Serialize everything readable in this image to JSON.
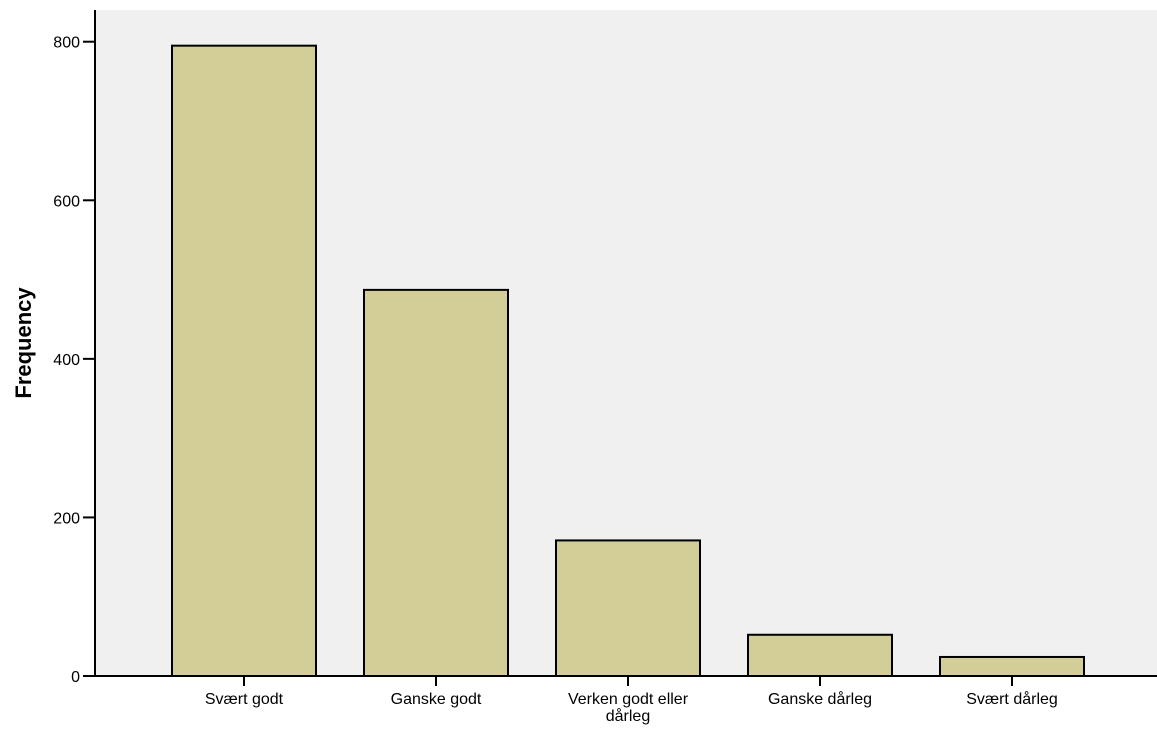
{
  "chart_data": {
    "type": "bar",
    "title": "",
    "xlabel": "",
    "ylabel": "Frequency",
    "categories": [
      "Svært godt",
      "Ganske godt",
      "Verken godt eller dårleg",
      "Ganske dårleg",
      "Svært dårleg"
    ],
    "category_lines": [
      [
        "Svært godt"
      ],
      [
        "Ganske godt"
      ],
      [
        "Verken godt eller",
        "dårleg"
      ],
      [
        "Ganske dårleg"
      ],
      [
        "Svært dårleg"
      ]
    ],
    "values": [
      795,
      487,
      171,
      52,
      24
    ],
    "ylim": [
      0,
      840
    ],
    "yticks": [
      0,
      200,
      400,
      600,
      800
    ],
    "grid": false,
    "colors": {
      "bar_fill": "#d3ce97",
      "bar_stroke": "#000000",
      "plot_background": "#f0f0f0"
    }
  }
}
